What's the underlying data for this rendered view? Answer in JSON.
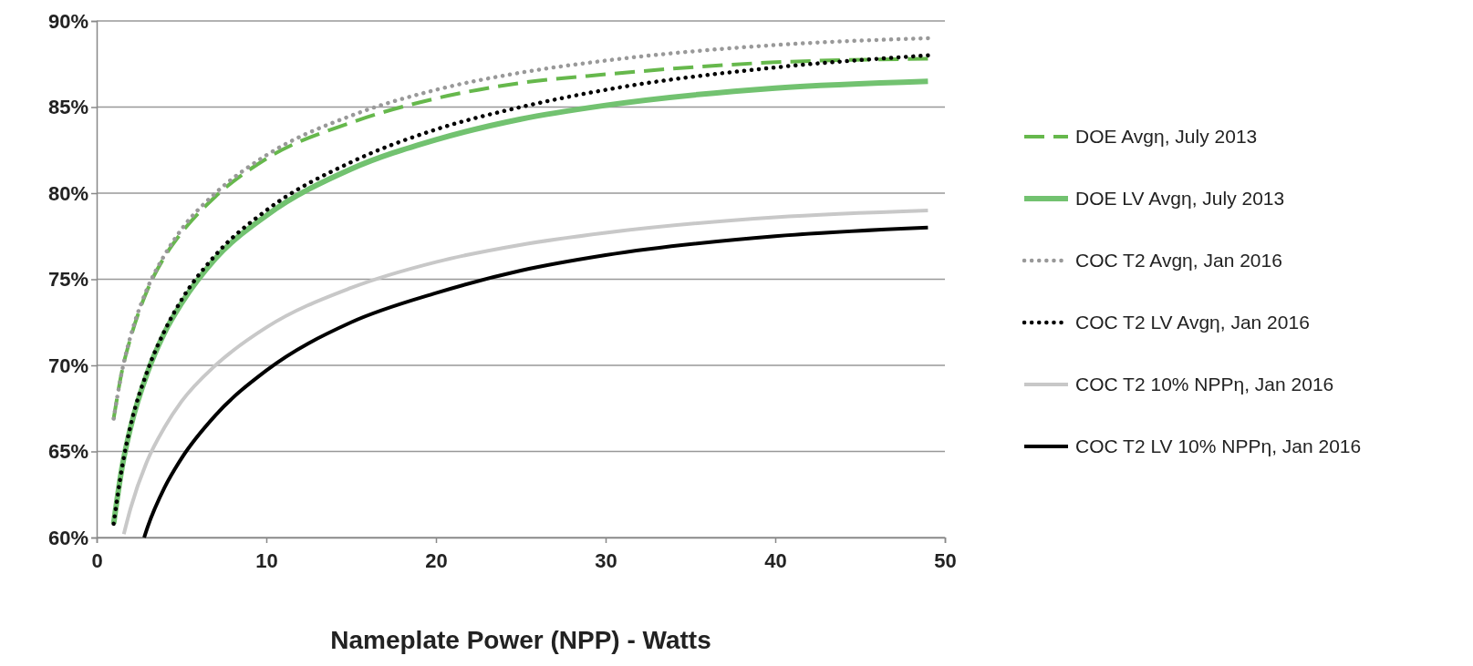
{
  "chart_data": {
    "type": "line",
    "xlabel": "Nameplate Power (NPP) - Watts",
    "xlim": [
      0,
      50
    ],
    "xticks": [
      0,
      10,
      20,
      30,
      40,
      50
    ],
    "ylim": [
      60,
      90
    ],
    "yticks": [
      {
        "value": 60,
        "label": "60%"
      },
      {
        "value": 65,
        "label": "65%"
      },
      {
        "value": 70,
        "label": "70%"
      },
      {
        "value": 75,
        "label": "75%"
      },
      {
        "value": 80,
        "label": "80%"
      },
      {
        "value": 85,
        "label": "85%"
      },
      {
        "value": 90,
        "label": "90%"
      }
    ],
    "grid": "y",
    "legend": "right",
    "marker": "none",
    "series": [
      {
        "name": "DOE Avgη, July 2013",
        "color": "#66b84c",
        "line_style": "dashed",
        "x": [
          1,
          1.5,
          2,
          3,
          4,
          5,
          7,
          10,
          15,
          20,
          25,
          30,
          40,
          49
        ],
        "values": [
          66.9,
          69.7,
          71.6,
          74.4,
          76.3,
          77.7,
          79.8,
          82.0,
          84.1,
          85.5,
          86.4,
          86.9,
          87.6,
          87.8
        ]
      },
      {
        "name": "DOE LV Avgη, July 2013",
        "color": "#72c270",
        "line_style": "solid",
        "x": [
          1,
          1.5,
          2,
          3,
          4,
          5,
          7,
          10,
          15,
          20,
          25,
          30,
          40,
          49
        ],
        "values": [
          60.8,
          64.1,
          66.4,
          69.6,
          71.9,
          73.6,
          76.2,
          78.7,
          81.4,
          83.1,
          84.3,
          85.1,
          86.1,
          86.5
        ]
      },
      {
        "name": "COC T2 Avgη, Jan 2016",
        "color": "#999999",
        "line_style": "dotted",
        "x": [
          1,
          1.5,
          2,
          3,
          4,
          5,
          7,
          10,
          15,
          20,
          25,
          30,
          40,
          49
        ],
        "values": [
          66.9,
          69.7,
          71.7,
          74.5,
          76.4,
          77.9,
          80.0,
          82.2,
          84.5,
          86.0,
          87.0,
          87.7,
          88.6,
          89.0
        ]
      },
      {
        "name": "COC T2 LV Avgη, Jan 2016",
        "color": "#000000",
        "line_style": "dotted",
        "x": [
          1,
          1.5,
          2,
          3,
          4,
          5,
          7,
          10,
          15,
          20,
          25,
          30,
          40,
          49
        ],
        "values": [
          60.8,
          64.1,
          66.5,
          69.7,
          72.0,
          73.8,
          76.4,
          79.0,
          81.8,
          83.7,
          85.0,
          86.0,
          87.3,
          88.0
        ]
      },
      {
        "name": "COC T2 10% NPPη, Jan 2016",
        "color": "#c8c8c8",
        "line_style": "solid",
        "x": [
          1.6,
          2,
          3,
          4,
          5,
          7,
          10,
          15,
          20,
          25,
          30,
          40,
          49
        ],
        "values": [
          60.2,
          61.7,
          64.5,
          66.4,
          67.9,
          70.0,
          72.2,
          74.5,
          76.0,
          77.0,
          77.7,
          78.6,
          79.0
        ]
      },
      {
        "name": "COC T2 LV 10% NPPη, Jan 2016",
        "color": "#000000",
        "line_style": "solid",
        "x": [
          2.8,
          3,
          4,
          5,
          7,
          10,
          15,
          20,
          25,
          30,
          40,
          49
        ],
        "values": [
          60.0,
          60.6,
          62.9,
          64.6,
          67.1,
          69.7,
          72.5,
          74.2,
          75.5,
          76.4,
          77.5,
          78.0
        ]
      }
    ]
  }
}
